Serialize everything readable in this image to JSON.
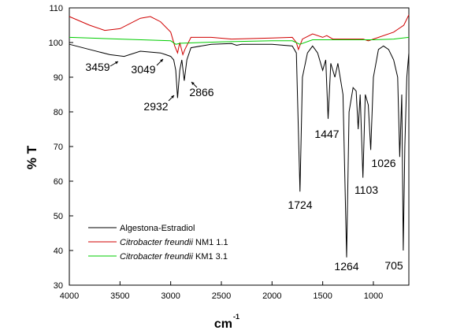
{
  "chart_data": {
    "type": "line",
    "xlabel": "cm",
    "xlabel_sup": "-1",
    "ylabel": "% T",
    "xlim": [
      4000,
      650
    ],
    "ylim": [
      30,
      110
    ],
    "xticks": [
      4000,
      3500,
      3000,
      2500,
      2000,
      1500,
      1000
    ],
    "yticks": [
      30,
      40,
      50,
      60,
      70,
      80,
      90,
      100,
      110
    ],
    "legend": "lower left",
    "annotations": [
      "3459",
      "3049",
      "2932",
      "2866",
      "1724",
      "1447",
      "1264",
      "1103",
      "1026",
      "705"
    ],
    "series": [
      {
        "name": "Algestona-Estradiol",
        "color": "#000000",
        "italic_words": 0,
        "x": [
          4000,
          3800,
          3600,
          3459,
          3300,
          3100,
          3049,
          3000,
          2970,
          2950,
          2932,
          2910,
          2890,
          2866,
          2840,
          2800,
          2600,
          2400,
          2350,
          2300,
          2000,
          1800,
          1760,
          1724,
          1700,
          1650,
          1600,
          1550,
          1500,
          1470,
          1447,
          1420,
          1380,
          1350,
          1300,
          1264,
          1240,
          1200,
          1170,
          1150,
          1130,
          1103,
          1080,
          1050,
          1026,
          1000,
          950,
          900,
          850,
          800,
          760,
          740,
          720,
          705,
          690,
          670,
          650
        ],
        "values": [
          99.5,
          98,
          96.5,
          96,
          97.5,
          97,
          96.5,
          96,
          95,
          92,
          84,
          92,
          95,
          89,
          95,
          98.5,
          99.5,
          99.7,
          99.2,
          99.5,
          99.5,
          99,
          97,
          57,
          90,
          97,
          99,
          97,
          92,
          95,
          78,
          94,
          90,
          94,
          85,
          38,
          80,
          87,
          86,
          75,
          85,
          61,
          85,
          82,
          69,
          90,
          98,
          99,
          98,
          95,
          90,
          67,
          85,
          40,
          70,
          90,
          97
        ]
      },
      {
        "name": "Citrobacter freundii NM1 1.1",
        "color": "#d00000",
        "italic_words": 2,
        "x": [
          4000,
          3800,
          3650,
          3500,
          3300,
          3200,
          3100,
          3000,
          2960,
          2932,
          2910,
          2880,
          2860,
          2800,
          2600,
          2400,
          2000,
          1800,
          1760,
          1740,
          1700,
          1600,
          1500,
          1460,
          1400,
          1200,
          1100,
          1050,
          1000,
          800,
          700,
          650
        ],
        "values": [
          107.5,
          105,
          103.5,
          104,
          107,
          107.5,
          106,
          103,
          99,
          97,
          100,
          96.5,
          98,
          101.5,
          101.5,
          101,
          101.3,
          101.5,
          100,
          98,
          101,
          102.5,
          101.5,
          102,
          101,
          101,
          101,
          100.5,
          101,
          103,
          105,
          108
        ]
      },
      {
        "name": "Citrobacter freundii KM1 3.1",
        "color": "#00cc00",
        "italic_words": 2,
        "x": [
          4000,
          3500,
          3000,
          2950,
          2900,
          2500,
          2000,
          1800,
          1724,
          1600,
          1300,
          1000,
          800,
          650
        ],
        "values": [
          101.5,
          101,
          100.5,
          99.5,
          99.8,
          100.2,
          100.5,
          100.5,
          99.5,
          100.8,
          100.8,
          100.8,
          101,
          101.5
        ]
      }
    ]
  }
}
